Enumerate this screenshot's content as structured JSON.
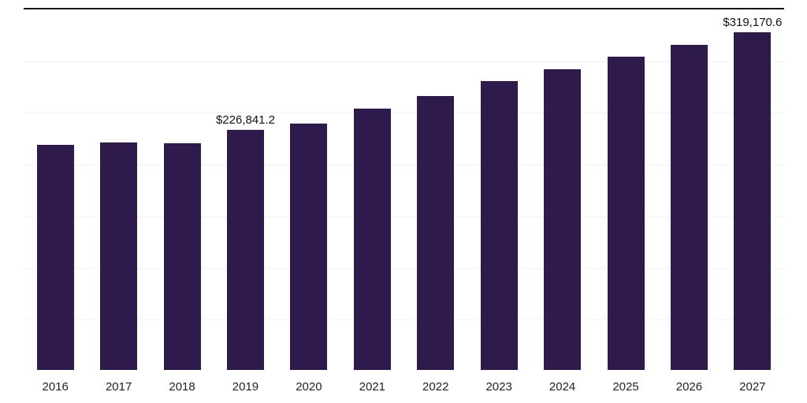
{
  "chart_data": {
    "type": "bar",
    "title": "",
    "xlabel": "",
    "ylabel": "",
    "categories": [
      "2016",
      "2017",
      "2018",
      "2019",
      "2020",
      "2021",
      "2022",
      "2023",
      "2024",
      "2025",
      "2026",
      "2027"
    ],
    "values": [
      213000,
      214500,
      214000,
      226841.2,
      232500,
      246500,
      259000,
      272500,
      284000,
      296000,
      307000,
      319170.6
    ],
    "annotations": [
      {
        "category": "2019",
        "text": "$226,841.2"
      },
      {
        "category": "2027",
        "text": "$319,170.6"
      }
    ],
    "ylim": [
      0,
      342000
    ],
    "grid": true,
    "gridline_intervals": 7,
    "legend": false,
    "bar_color": "#2f1a4c",
    "top_axis_color": "#16161d",
    "gridline_color": "#f2f2f4",
    "background_color": "#ffffff"
  }
}
